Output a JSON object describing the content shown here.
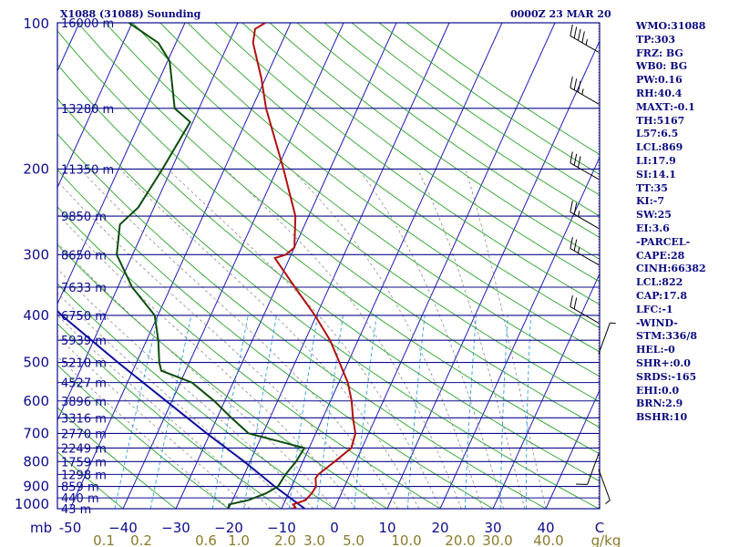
{
  "header": {
    "station_title": "X1088 (31088) Sounding",
    "valid_time": "0000Z 23 MAR 20"
  },
  "colors": {
    "isobar": "#0c0c8c",
    "isotherm": "#1c1cb8",
    "dry_adiabat": "#2aa22a",
    "moist_adiabat": "#8a8a8a",
    "mixing_ratio": "#2f9fdf",
    "temperature": "#b01010",
    "dewpoint": "#0c4c0c",
    "parcel": "#1010a0",
    "wind_barb": "#000000",
    "pressure_label": "#0c0c8c",
    "temp_label": "#0c0c8c",
    "mix_label": "#8a7a2a"
  },
  "indices": [
    "WMO:31088",
    "TP:303",
    "FRZ: BG",
    "WB0: BG",
    "PW:0.16",
    "RH:40.4",
    "MAXT:-0.1",
    "TH:5167",
    "L57:6.5",
    "LCL:869",
    "LI:17.9",
    "SI:14.1",
    "TT:35",
    "KI:-7",
    "SW:25",
    "EI:3.6",
    "-PARCEL-",
    "CAPE:28",
    "CINH:66382",
    "LCL:822",
    "CAP:17.8",
    "LFC:-1",
    "-WIND-",
    "STM:336/8",
    "HEL:-0",
    "SHR+:0.0",
    "SRDS:-165",
    "EHI:0.0",
    "BRN:2.9",
    "BSHR:10"
  ],
  "chart_data": {
    "type": "skew-t",
    "x_unit_label": "mb",
    "mixing_unit": "g/kg",
    "pressure_ticks": [
      100,
      200,
      300,
      400,
      500,
      600,
      700,
      800,
      900,
      1000
    ],
    "height_labels": [
      {
        "p": 100,
        "label": "16000 m"
      },
      {
        "p": 150,
        "label": "13280 m"
      },
      {
        "p": 200,
        "label": "11350 m"
      },
      {
        "p": 250,
        "label": "9850 m"
      },
      {
        "p": 300,
        "label": "8650 m"
      },
      {
        "p": 350,
        "label": "7633 m"
      },
      {
        "p": 400,
        "label": "6750 m"
      },
      {
        "p": 450,
        "label": "5939 m"
      },
      {
        "p": 500,
        "label": "5210 m"
      },
      {
        "p": 550,
        "label": "4527 m"
      },
      {
        "p": 600,
        "label": "3896 m"
      },
      {
        "p": 650,
        "label": "3316 m"
      },
      {
        "p": 700,
        "label": "2770 m"
      },
      {
        "p": 750,
        "label": "2249 m"
      },
      {
        "p": 800,
        "label": "1759 m"
      },
      {
        "p": 850,
        "label": "1298 m"
      },
      {
        "p": 900,
        "label": "859 m"
      },
      {
        "p": 950,
        "label": "440 m"
      },
      {
        "p": 1000,
        "label": "43 m"
      }
    ],
    "temperature_ticks": [
      -50,
      -40,
      -30,
      -20,
      -10,
      0,
      10,
      20,
      30,
      40
    ],
    "temperature_tick_labels": [
      "-50",
      "−40",
      "−30",
      "−20",
      "−10",
      "0",
      "10",
      "20",
      "30",
      "40"
    ],
    "mixing_ratio_labels": [
      "0.1",
      "0.2",
      "0.6",
      "1.0",
      "2.0",
      "3.0",
      "5.0",
      "10.0",
      "20.0",
      "30.0",
      "40.0"
    ],
    "extra_label": "C",
    "temperature_profile": [
      [
        1000,
        -7.9
      ],
      [
        993,
        -7.5
      ],
      [
        980,
        -8.2
      ],
      [
        960,
        -6.2
      ],
      [
        930,
        -5.6
      ],
      [
        900,
        -5.4
      ],
      [
        865,
        -6.2
      ],
      [
        850,
        -6.0
      ],
      [
        800,
        -4.0
      ],
      [
        750,
        -2.0
      ],
      [
        700,
        -2.5
      ],
      [
        650,
        -4.3
      ],
      [
        600,
        -6.0
      ],
      [
        550,
        -8.3
      ],
      [
        500,
        -11.6
      ],
      [
        450,
        -15.3
      ],
      [
        400,
        -20.3
      ],
      [
        350,
        -26.5
      ],
      [
        305,
        -32.8
      ],
      [
        300,
        -31.0
      ],
      [
        290,
        -30.0
      ],
      [
        250,
        -32.5
      ],
      [
        200,
        -38.8
      ],
      [
        150,
        -47.3
      ],
      [
        130,
        -50.8
      ],
      [
        110,
        -55.4
      ],
      [
        103,
        -56.2
      ],
      [
        100,
        -54.8
      ]
    ],
    "dewpoint_profile": [
      [
        1000,
        -20.1
      ],
      [
        980,
        -20.3
      ],
      [
        960,
        -17.0
      ],
      [
        930,
        -14.3
      ],
      [
        900,
        -12.6
      ],
      [
        850,
        -12.2
      ],
      [
        800,
        -11.3
      ],
      [
        750,
        -10.9
      ],
      [
        730,
        -15.5
      ],
      [
        700,
        -22.7
      ],
      [
        650,
        -27.3
      ],
      [
        600,
        -32.0
      ],
      [
        550,
        -37.8
      ],
      [
        520,
        -44.6
      ],
      [
        500,
        -45.7
      ],
      [
        450,
        -47.8
      ],
      [
        400,
        -50.6
      ],
      [
        350,
        -57.3
      ],
      [
        300,
        -63.0
      ],
      [
        260,
        -65.0
      ],
      [
        240,
        -63.0
      ],
      [
        200,
        -61.7
      ],
      [
        160,
        -60.5
      ],
      [
        150,
        -64.6
      ],
      [
        120,
        -69.6
      ],
      [
        110,
        -73.3
      ],
      [
        100,
        -80.6
      ]
    ],
    "parcel_profile": [
      [
        1000,
        -5.6
      ],
      [
        900,
        -13.2
      ],
      [
        800,
        -21.1
      ],
      [
        700,
        -30.6
      ],
      [
        600,
        -41.1
      ],
      [
        500,
        -53.5
      ],
      [
        400,
        -68.2
      ],
      [
        300,
        -84.9
      ],
      [
        200,
        -107.8
      ],
      [
        100,
        -141.7
      ]
    ],
    "wind_barbs": [
      {
        "p": 115,
        "dir": 300,
        "speed": 45
      },
      {
        "p": 147,
        "dir": 300,
        "speed": 35
      },
      {
        "p": 210,
        "dir": 300,
        "speed": 30
      },
      {
        "p": 265,
        "dir": 300,
        "speed": 25
      },
      {
        "p": 315,
        "dir": 300,
        "speed": 25
      },
      {
        "p": 415,
        "dir": 300,
        "speed": 20
      },
      {
        "p": 480,
        "dir": 20,
        "speed": 5
      },
      {
        "p": 770,
        "dir": 200,
        "speed": 10
      },
      {
        "p": 830,
        "dir": 160,
        "speed": 5
      }
    ],
    "grid": true
  }
}
